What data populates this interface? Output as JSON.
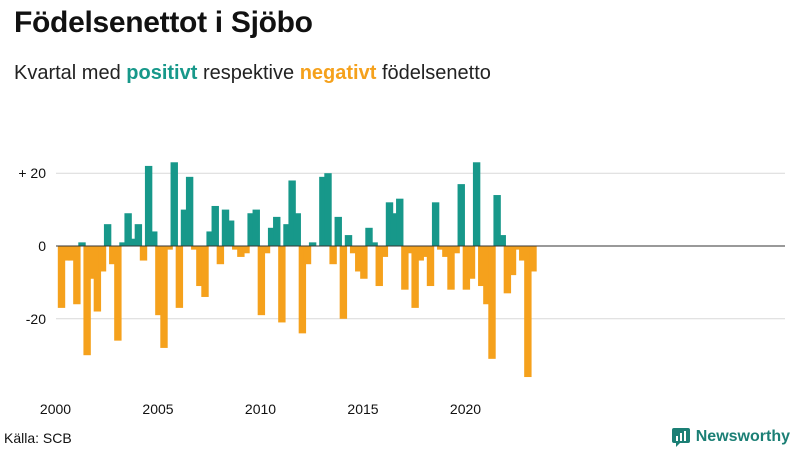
{
  "header": {
    "title": "Födelsenettot i Sjöbo",
    "subtitle_prefix": "Kvartal med",
    "subtitle_positive": "positivt",
    "subtitle_middle": "respektive",
    "subtitle_negative": "negativt",
    "subtitle_suffix": "födelsenetto"
  },
  "footer": {
    "source": "Källa: SCB",
    "brand": "Newsworthy"
  },
  "colors": {
    "positive": "#17988a",
    "negative": "#f5a11c",
    "grid": "#d9d9d9",
    "zero_line": "#333333"
  },
  "chart_data": {
    "type": "bar",
    "title": "Födelsenettot i Sjöbo",
    "subtitle": "Kvartal med positivt respektive negativt födelsenetto",
    "x_start": "2000 Q1",
    "x_tick_labels": [
      "2000",
      "2005",
      "2010",
      "2015",
      "2020"
    ],
    "y_ticks": [
      20,
      0,
      -20
    ],
    "y_tick_labels": [
      "+ 20",
      "0",
      "-20"
    ],
    "ylim": [
      -37,
      25
    ],
    "grid": true,
    "values": [
      -17,
      -4,
      -4,
      -16,
      1,
      -30,
      -9,
      -18,
      -7,
      6,
      -5,
      -26,
      1,
      9,
      2,
      6,
      -4,
      22,
      4,
      -19,
      -28,
      -1,
      23,
      -17,
      10,
      19,
      -1,
      -11,
      -14,
      4,
      11,
      -5,
      10,
      7,
      -1,
      -3,
      -2,
      9,
      10,
      -19,
      -2,
      5,
      8,
      -21,
      6,
      18,
      9,
      -24,
      -5,
      1,
      0,
      19,
      20,
      -5,
      8,
      -20,
      3,
      -2,
      -7,
      -9,
      5,
      1,
      -11,
      -3,
      12,
      9,
      13,
      -12,
      -2,
      -17,
      -4,
      -3,
      -11,
      12,
      -1,
      -3,
      -12,
      -2,
      17,
      -12,
      -9,
      23,
      -11,
      -16,
      -31,
      14,
      3,
      -13,
      -8,
      -1,
      -4,
      -36,
      -7
    ]
  }
}
